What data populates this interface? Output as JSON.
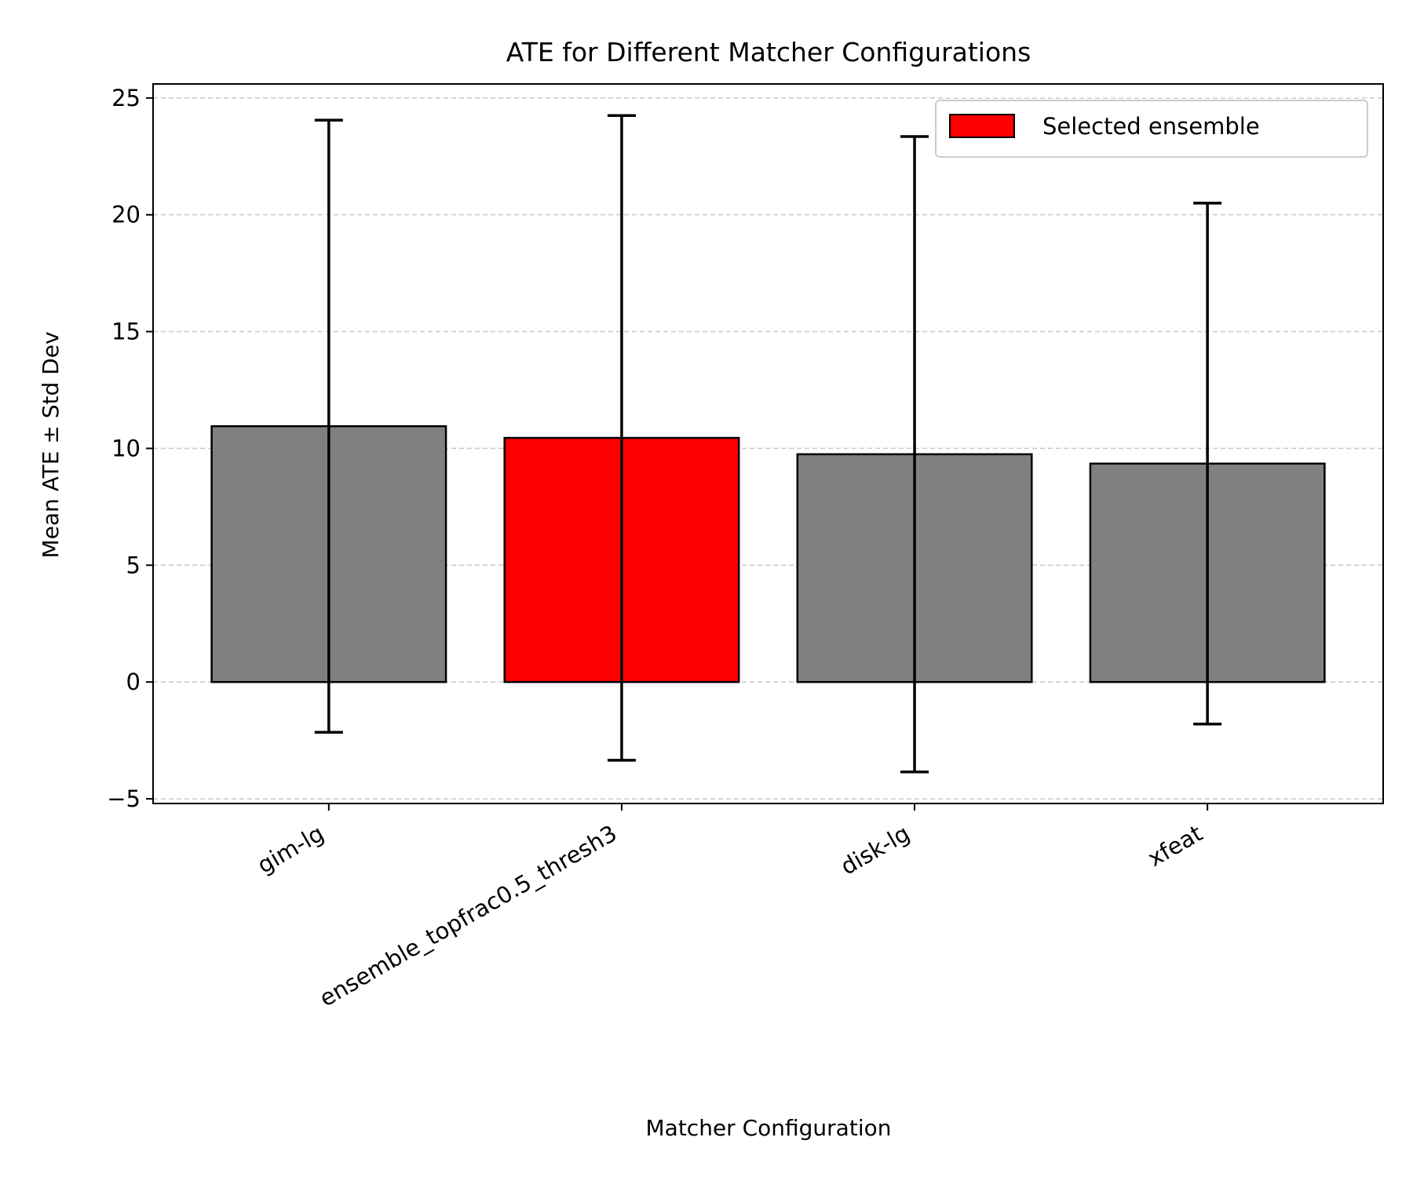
{
  "chart_data": {
    "type": "bar",
    "title": "ATE for Different Matcher Configurations",
    "xlabel": "Matcher Configuration",
    "ylabel": "Mean ATE ± Std Dev",
    "categories": [
      "gim-lg",
      "ensemble_topfrac0.5_thresh3",
      "disk-lg",
      "xfeat"
    ],
    "values": [
      10.95,
      10.45,
      9.75,
      9.35
    ],
    "error_low": [
      -2.15,
      -3.35,
      -3.85,
      -1.8
    ],
    "error_high": [
      24.05,
      24.25,
      23.35,
      20.5
    ],
    "bar_colors": [
      "#808080",
      "#ff0000",
      "#808080",
      "#808080"
    ],
    "edge_color": "#000000",
    "highlighted_index": 1,
    "ylim": [
      -5.2,
      25.6
    ],
    "yticks": [
      -5,
      0,
      5,
      10,
      15,
      20,
      25
    ],
    "ytick_labels": [
      "−5",
      "0",
      "5",
      "10",
      "15",
      "20",
      "25"
    ],
    "grid": "y-dashed",
    "legend": {
      "position": "top-right",
      "entries": [
        {
          "label": "Selected ensemble",
          "color": "#ff0000"
        }
      ]
    }
  }
}
